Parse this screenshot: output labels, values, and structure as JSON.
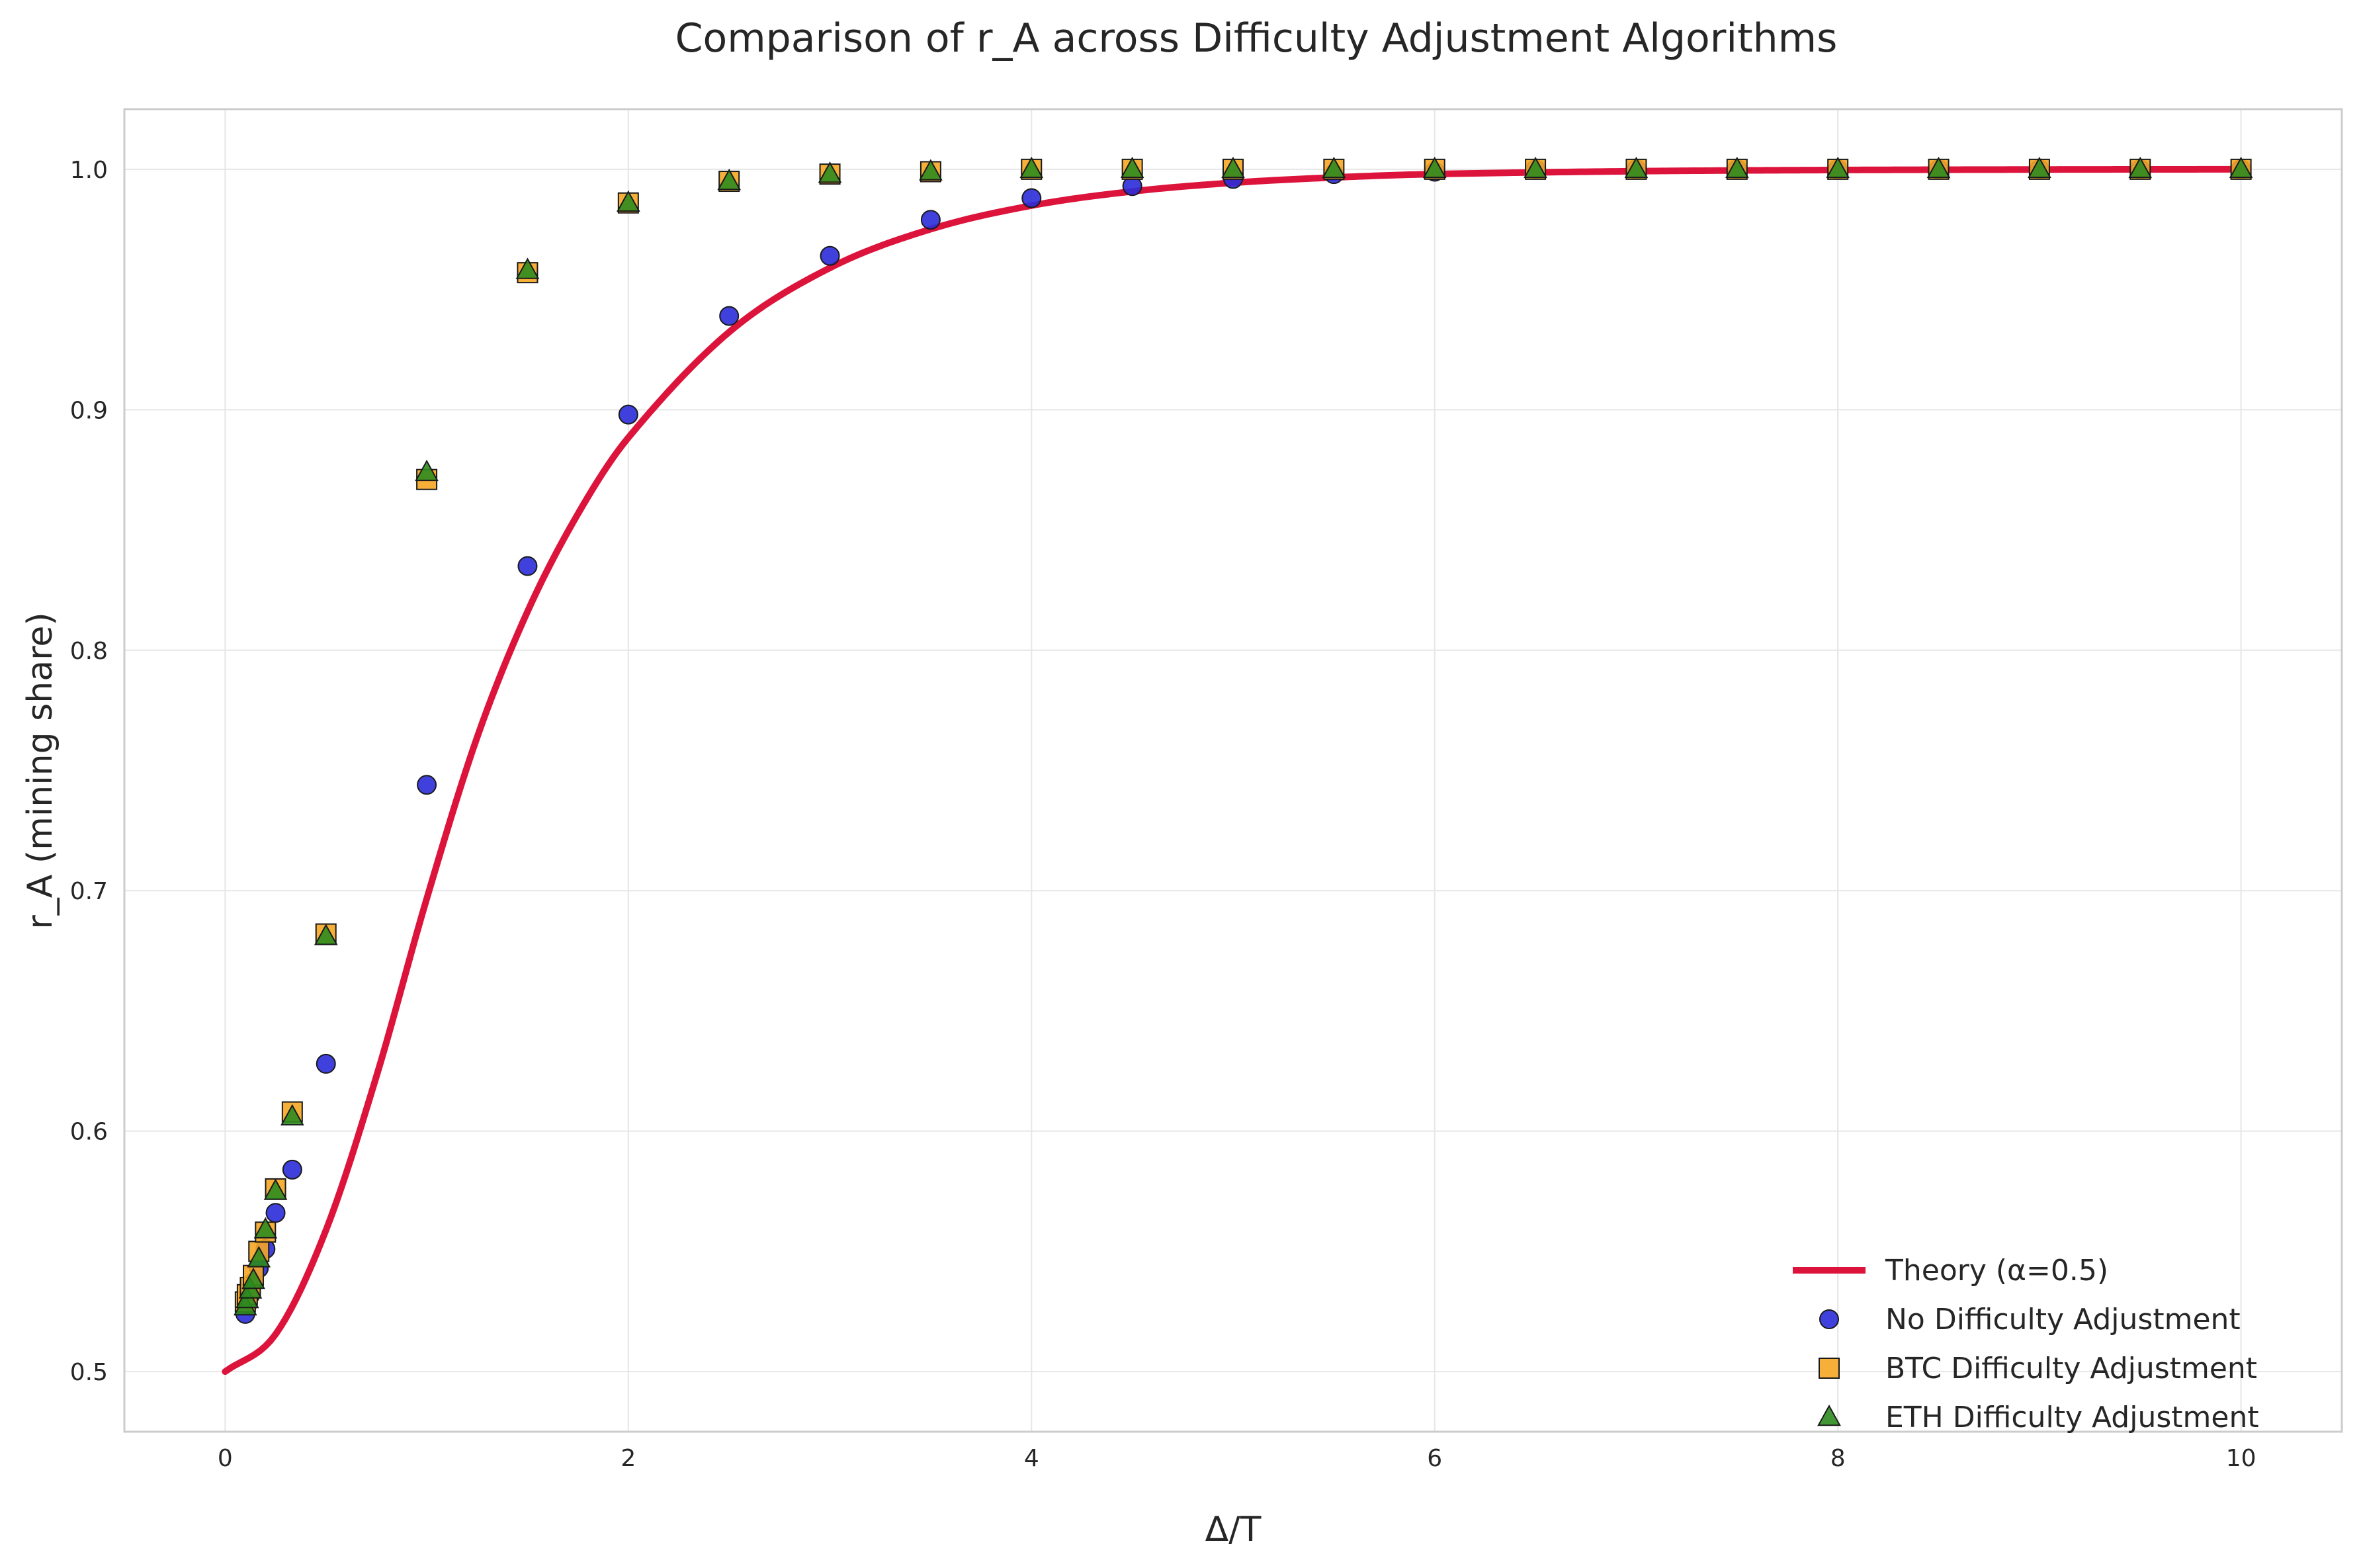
{
  "chart_data": {
    "type": "scatter",
    "title": "Comparison of r_A across Difficulty Adjustment Algorithms",
    "xlabel": "Δ/T",
    "ylabel": "r_A (mining share)",
    "xlim": [
      -0.5,
      10.5
    ],
    "ylim": [
      0.475,
      1.025
    ],
    "x_ticks": [
      0,
      2,
      4,
      6,
      8,
      10
    ],
    "x_tick_labels": [
      "0",
      "2",
      "4",
      "6",
      "8",
      "10"
    ],
    "y_ticks": [
      0.5,
      0.6,
      0.7,
      0.8,
      0.9,
      1.0
    ],
    "y_tick_labels": [
      "0.5",
      "0.6",
      "0.7",
      "0.8",
      "0.9",
      "1.0"
    ],
    "grid": true,
    "legend_position": "bottom-right",
    "series": [
      {
        "name": "Theory (α=0.5)",
        "kind": "line",
        "color": "#dc143c",
        "formula": "1 - 0.5*exp(-0.5*x^2) for x < 1, 1 - 0.5*exp(0.5 - x) for x >= 1",
        "x": [
          0,
          0.25,
          0.5,
          0.75,
          1,
          1.25,
          1.5,
          1.75,
          2,
          2.5,
          3,
          3.5,
          4,
          4.5,
          5,
          5.5,
          6,
          7,
          8,
          9,
          10
        ],
        "y": [
          0.5,
          0.5155,
          0.5588,
          0.6227,
          0.6967,
          0.7638,
          0.8161,
          0.8567,
          0.8884,
          0.9323,
          0.959,
          0.9751,
          0.9849,
          0.9908,
          0.9944,
          0.9966,
          0.998,
          0.9992,
          0.9997,
          0.9999,
          1.0
        ]
      },
      {
        "name": "No Difficulty Adjustment",
        "kind": "scatter",
        "marker": "circle",
        "color": "#2b2bd8",
        "x": [
          0.1,
          0.11,
          0.125,
          0.14,
          0.167,
          0.2,
          0.25,
          0.333,
          0.5,
          1,
          1.5,
          2,
          2.5,
          3,
          3.5,
          4,
          4.5,
          5,
          5.5,
          6,
          6.5,
          7,
          7.5,
          8,
          8.5,
          9,
          9.5,
          10
        ],
        "y": [
          0.524,
          0.528,
          0.532,
          0.537,
          0.543,
          0.551,
          0.566,
          0.584,
          0.628,
          0.744,
          0.835,
          0.898,
          0.939,
          0.964,
          0.979,
          0.988,
          0.993,
          0.996,
          0.998,
          0.999,
          1.0,
          1.0,
          1.0,
          1.0,
          1.0,
          1.0,
          1.0,
          1.0
        ]
      },
      {
        "name": "BTC Difficulty Adjustment",
        "kind": "scatter",
        "marker": "square",
        "color": "#f5a623",
        "x": [
          0.1,
          0.11,
          0.125,
          0.14,
          0.167,
          0.2,
          0.25,
          0.333,
          0.5,
          1,
          1.5,
          2,
          2.5,
          3,
          3.5,
          4,
          4.5,
          5,
          5.5,
          6,
          6.5,
          7,
          7.5,
          8,
          8.5,
          9,
          9.5,
          10
        ],
        "y": [
          0.529,
          0.532,
          0.535,
          0.54,
          0.55,
          0.558,
          0.576,
          0.608,
          0.682,
          0.871,
          0.957,
          0.986,
          0.995,
          0.998,
          0.999,
          1.0,
          1.0,
          1.0,
          1.0,
          1.0,
          1.0,
          1.0,
          1.0,
          1.0,
          1.0,
          1.0,
          1.0,
          1.0
        ]
      },
      {
        "name": "ETH Difficulty Adjustment",
        "kind": "scatter",
        "marker": "triangle",
        "color": "#2e8b1f",
        "x": [
          0.1,
          0.11,
          0.125,
          0.14,
          0.167,
          0.2,
          0.25,
          0.333,
          0.5,
          1,
          1.5,
          2,
          2.5,
          3,
          3.5,
          4,
          4.5,
          5,
          5.5,
          6,
          6.5,
          7,
          7.5,
          8,
          8.5,
          9,
          9.5,
          10
        ],
        "y": [
          0.527,
          0.53,
          0.534,
          0.538,
          0.547,
          0.559,
          0.575,
          0.606,
          0.681,
          0.874,
          0.958,
          0.986,
          0.995,
          0.998,
          0.999,
          1.0,
          1.0,
          1.0,
          1.0,
          1.0,
          1.0,
          1.0,
          1.0,
          1.0,
          1.0,
          1.0,
          1.0,
          1.0
        ]
      }
    ]
  }
}
